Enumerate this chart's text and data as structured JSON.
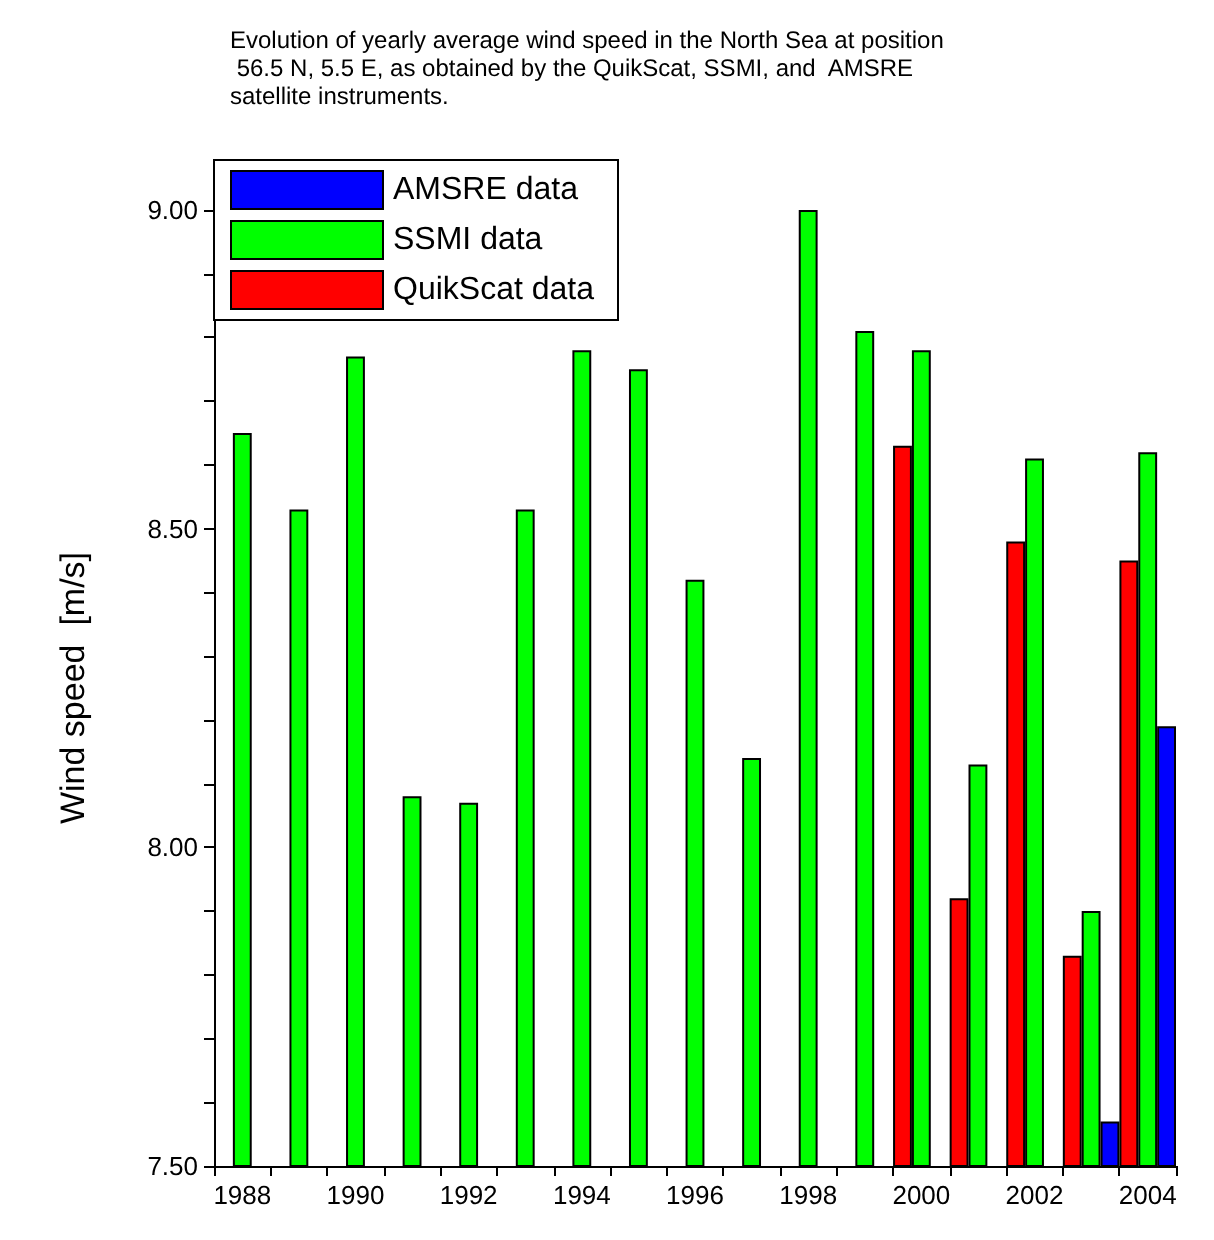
{
  "chart_data": {
    "type": "bar",
    "title": "Evolution of yearly average wind speed in the North Sea at position 56.5 N, 5.5 E, as obtained by the QuikScat, SSMI, and  AMSRE satellite instruments.",
    "ylabel": "Wind speed  [m/s]",
    "categories": [
      "1988",
      null,
      "1990",
      null,
      "1992",
      null,
      "1994",
      null,
      "1996",
      null,
      "1998",
      null,
      "2000",
      null,
      "2002",
      null,
      "2004"
    ],
    "series": [
      {
        "name": "AMSRE data",
        "color": "#0000ff",
        "values": [
          null,
          null,
          null,
          null,
          null,
          null,
          null,
          null,
          null,
          null,
          null,
          null,
          null,
          null,
          null,
          7.57,
          8.19
        ]
      },
      {
        "name": "SSMI data",
        "color": "#00ff00",
        "values": [
          8.65,
          8.53,
          8.77,
          8.08,
          8.07,
          8.53,
          8.78,
          8.75,
          8.42,
          8.14,
          9.0,
          8.81,
          8.78,
          8.13,
          8.61,
          7.9,
          8.62
        ]
      },
      {
        "name": "QuikScat data",
        "color": "#ff0000",
        "values": [
          null,
          null,
          null,
          null,
          null,
          null,
          null,
          null,
          null,
          null,
          null,
          null,
          8.63,
          7.92,
          8.48,
          7.83,
          8.45
        ]
      }
    ],
    "ylim": [
      7.5,
      9.0
    ],
    "yticks": [
      {
        "value": 7.5,
        "label": "7.50"
      },
      {
        "value": 7.6,
        "label": null
      },
      {
        "value": 7.7,
        "label": null
      },
      {
        "value": 7.8,
        "label": null
      },
      {
        "value": 7.9,
        "label": null
      },
      {
        "value": 8.0,
        "label": "8.00"
      },
      {
        "value": 8.1,
        "label": null
      },
      {
        "value": 8.2,
        "label": null
      },
      {
        "value": 8.3,
        "label": null
      },
      {
        "value": 8.4,
        "label": null
      },
      {
        "value": 8.5,
        "label": "8.50"
      },
      {
        "value": 8.6,
        "label": null
      },
      {
        "value": 8.7,
        "label": null
      },
      {
        "value": 8.8,
        "label": null
      },
      {
        "value": 8.9,
        "label": null
      },
      {
        "value": 9.0,
        "label": "9.00"
      }
    ],
    "grid": false,
    "legend": "top left"
  }
}
